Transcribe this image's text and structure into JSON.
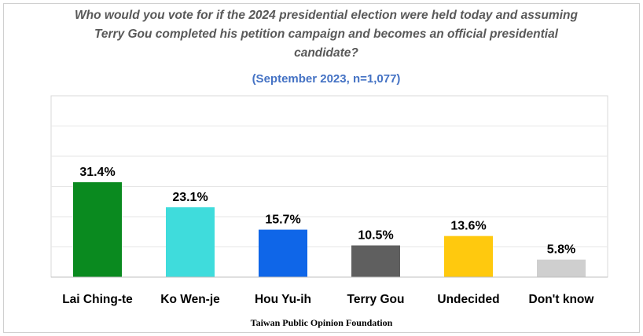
{
  "title": "Who would you vote for if the 2024 presidential election were held today and assuming Terry Gou completed his petition campaign and becomes an official presidential candidate?",
  "subtitle": "(September 2023, n=1,077)",
  "source": "Taiwan Public Opinion Foundation",
  "chart_data": {
    "type": "bar",
    "categories": [
      "Lai Ching-te",
      "Ko Wen-je",
      "Hou Yu-ih",
      "Terry Gou",
      "Undecided",
      "Don't know"
    ],
    "values": [
      31.4,
      23.1,
      15.7,
      10.5,
      13.6,
      5.8
    ],
    "data_labels": [
      "31.4%",
      "23.1%",
      "15.7%",
      "10.5%",
      "13.6%",
      "5.8%"
    ],
    "colors": [
      "#0a8a1f",
      "#3fdcdc",
      "#0f66e8",
      "#5f5f5f",
      "#ffc90e",
      "#cfcfcf"
    ],
    "ylim": [
      0,
      60
    ],
    "grid": true,
    "xlabel": "",
    "ylabel": ""
  }
}
